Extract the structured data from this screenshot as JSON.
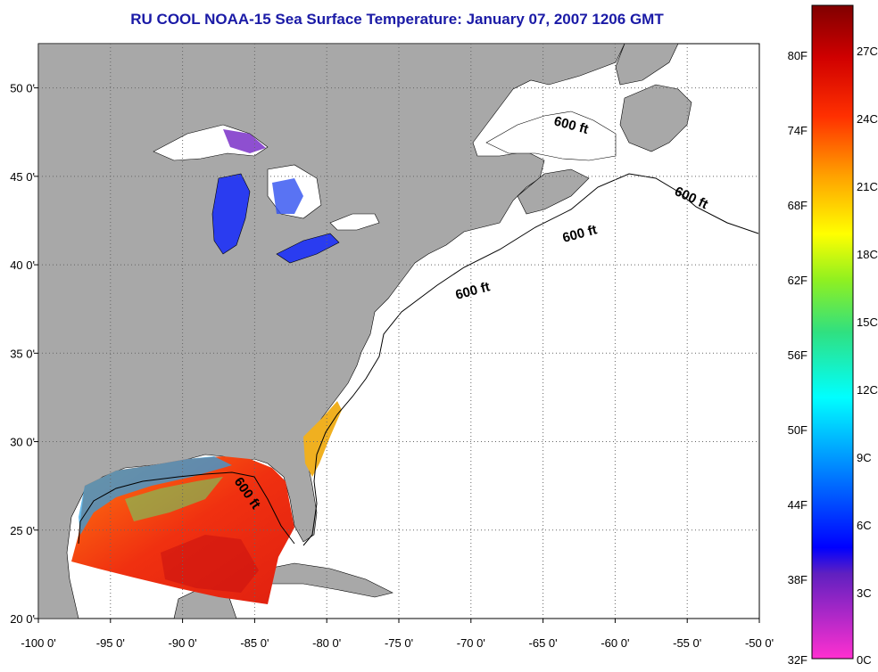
{
  "title": "RU COOL  NOAA-15  Sea Surface Temperature:  January 07, 2007 1206 GMT",
  "map": {
    "lon_range": [
      -100,
      -50
    ],
    "lat_range": [
      20,
      52.5
    ],
    "lon_ticks": [
      {
        "value": -100,
        "label": "-100 0'"
      },
      {
        "value": -95,
        "label": "-95 0'"
      },
      {
        "value": -90,
        "label": "-90 0'"
      },
      {
        "value": -85,
        "label": "-85 0'"
      },
      {
        "value": -80,
        "label": "-80 0'"
      },
      {
        "value": -75,
        "label": "-75 0'"
      },
      {
        "value": -70,
        "label": "-70 0'"
      },
      {
        "value": -65,
        "label": "-65 0'"
      },
      {
        "value": -60,
        "label": "-60 0'"
      },
      {
        "value": -55,
        "label": "-55 0'"
      },
      {
        "value": -50,
        "label": "-50 0'"
      }
    ],
    "lat_ticks": [
      {
        "value": 50,
        "label": "50 0'"
      },
      {
        "value": 45,
        "label": "45 0'"
      },
      {
        "value": 40,
        "label": "40 0'"
      },
      {
        "value": 35,
        "label": "35 0'"
      },
      {
        "value": 30,
        "label": "30 0'"
      },
      {
        "value": 25,
        "label": "25 0'"
      },
      {
        "value": 20,
        "label": "20 0'"
      }
    ],
    "depth_labels": [
      "600 ft",
      "600 ft",
      "600 ft",
      "600 ft",
      "600 ft"
    ],
    "colors": {
      "land": "#a8a8a8",
      "ocean": "#ffffff",
      "grid": "#666666",
      "contour": "#000000"
    }
  },
  "colorbar": {
    "fahrenheit_labels": [
      "80F",
      "74F",
      "68F",
      "62F",
      "56F",
      "50F",
      "44F",
      "38F",
      "32F"
    ],
    "celsius_labels": [
      "27C",
      "24C",
      "21C",
      "18C",
      "15C",
      "12C",
      "9C",
      "6C",
      "3C",
      "0C"
    ]
  }
}
